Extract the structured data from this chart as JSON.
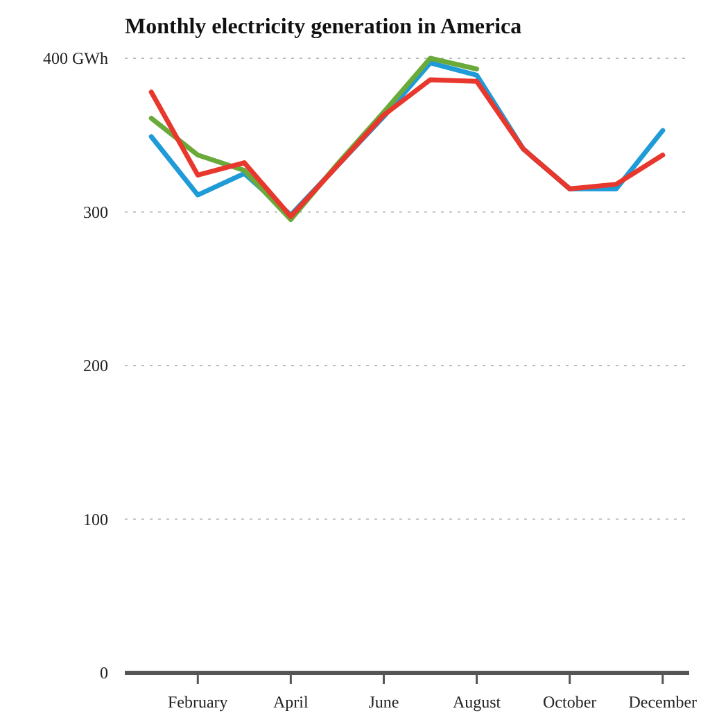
{
  "chart_data": {
    "type": "line",
    "title": "Monthly electricity generation in America",
    "categories": [
      null,
      "February",
      null,
      "April",
      null,
      "June",
      null,
      "August",
      null,
      "October",
      null,
      "December"
    ],
    "series": [
      {
        "color": "#1f9bd7",
        "values": [
          349,
          311,
          325,
          298,
          330,
          362,
          397,
          389,
          341,
          315,
          315,
          353
        ]
      },
      {
        "color": "#6aaa3a",
        "values": [
          361,
          337,
          327,
          295,
          331,
          365,
          400,
          393,
          null,
          null,
          null,
          null
        ]
      },
      {
        "color": "#e8372c",
        "values": [
          378,
          324,
          332,
          297,
          330,
          363,
          386,
          385,
          341,
          315,
          318,
          337
        ]
      }
    ],
    "ylim": [
      0,
      400
    ],
    "yticks": [
      0,
      100,
      200,
      300,
      {
        "value": 400,
        "label": "400 GWh"
      }
    ],
    "grid": "y",
    "line_style": "solid"
  }
}
